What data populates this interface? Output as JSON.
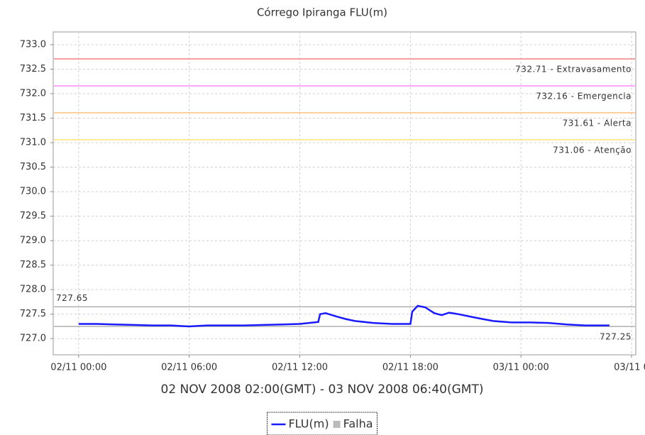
{
  "chart_data": {
    "type": "line",
    "title": "Córrego Ipiranga FLU(m)",
    "x_label": "02 NOV 2008 02:00(GMT) - 03 NOV 2008 06:40(GMT)",
    "xlim": [
      -1.38,
      30.23
    ],
    "xticks": [
      {
        "value": 0,
        "label": "02/11 00:00"
      },
      {
        "value": 6,
        "label": "02/11 06:00"
      },
      {
        "value": 12,
        "label": "02/11 12:00"
      },
      {
        "value": 18,
        "label": "02/11 18:00"
      },
      {
        "value": 24,
        "label": "03/11 00:00"
      },
      {
        "value": 30,
        "label": "03/11 0"
      }
    ],
    "ylim": [
      726.67,
      733.26
    ],
    "yticks": [
      {
        "value": 727,
        "label": "727.0"
      },
      727.5,
      {
        "value": 728,
        "label": "728.0"
      },
      728.5,
      {
        "value": 729,
        "label": "729.0"
      },
      729.5,
      {
        "value": 730,
        "label": "730.0"
      },
      730.5,
      {
        "value": 731,
        "label": "731.0"
      },
      731.5,
      {
        "value": 732,
        "label": "732.0"
      },
      732.5,
      {
        "value": 733,
        "label": "733.0"
      }
    ],
    "grid": true,
    "series": [
      {
        "name": "FLU(m)",
        "color": "#1a1aff",
        "x": [
          0,
          1,
          2,
          3,
          4,
          5,
          6,
          6.5,
          7,
          8,
          9,
          10,
          11,
          12,
          12.5,
          13,
          13.1,
          13.4,
          14,
          14.5,
          15,
          16,
          17,
          18,
          18.1,
          18.4,
          18.8,
          19.3,
          19.7,
          20.1,
          20.6,
          21.5,
          22.5,
          23.5,
          24.5,
          25.5,
          26.5,
          27.5,
          28.8
        ],
        "values": [
          727.3,
          727.3,
          727.29,
          727.28,
          727.27,
          727.27,
          727.25,
          727.26,
          727.27,
          727.27,
          727.27,
          727.28,
          727.29,
          727.3,
          727.32,
          727.34,
          727.5,
          727.52,
          727.45,
          727.4,
          727.36,
          727.32,
          727.3,
          727.3,
          727.55,
          727.67,
          727.64,
          727.52,
          727.48,
          727.53,
          727.5,
          727.43,
          727.36,
          727.33,
          727.33,
          727.32,
          727.29,
          727.27,
          727.27
        ]
      },
      {
        "name": "Falha",
        "color": "#bbbbbb",
        "x": [],
        "values": []
      }
    ],
    "markers": [
      {
        "value": 732.71,
        "label": "732.71 - Extravasamento",
        "color": "#f08080",
        "side": "right"
      },
      {
        "value": 732.16,
        "label": "732.16 - Emergencia",
        "color": "#ff88ff",
        "side": "right"
      },
      {
        "value": 731.61,
        "label": "731.61 - Alerta",
        "color": "#ffc080",
        "side": "right"
      },
      {
        "value": 731.06,
        "label": "731.06 - Atenção",
        "color": "#ffe27a",
        "side": "right"
      },
      {
        "value": 727.65,
        "label": "727.65",
        "color": "#b0b0b0",
        "side": "left"
      },
      {
        "value": 727.25,
        "label": "727.25",
        "color": "#b0b0b0",
        "side": "right"
      }
    ]
  }
}
